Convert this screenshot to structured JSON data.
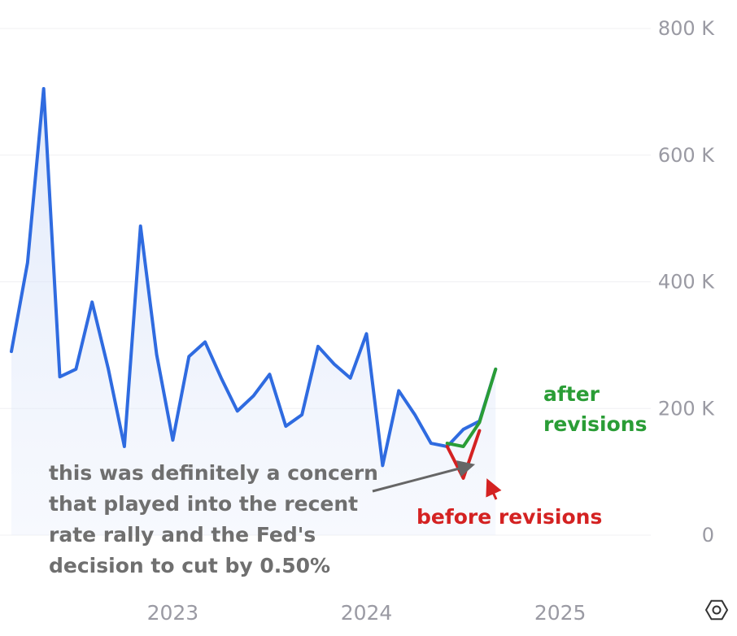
{
  "chart_data": {
    "type": "area",
    "title": "",
    "xlabel": "",
    "ylabel": "",
    "y_axis_position": "right",
    "ylim": [
      0,
      800000
    ],
    "y_ticks": [
      {
        "value": 0,
        "label": "0"
      },
      {
        "value": 200000,
        "label": "200 K"
      },
      {
        "value": 400000,
        "label": "400 K"
      },
      {
        "value": 600000,
        "label": "600 K"
      },
      {
        "value": 800000,
        "label": "800 K"
      }
    ],
    "x_ticks": [
      {
        "value": "2023-01",
        "label": "2023"
      },
      {
        "value": "2024-01",
        "label": "2024"
      },
      {
        "value": "2025-01",
        "label": "2025"
      }
    ],
    "xlim": [
      "2022-03",
      "2025-05"
    ],
    "grid": true,
    "series": [
      {
        "role": "main",
        "color": "#2f6be0",
        "x": [
          "2022-03",
          "2022-04",
          "2022-05",
          "2022-06",
          "2022-07",
          "2022-08",
          "2022-09",
          "2022-10",
          "2022-11",
          "2022-12",
          "2023-01",
          "2023-02",
          "2023-03",
          "2023-04",
          "2023-05",
          "2023-06",
          "2023-07",
          "2023-08",
          "2023-09",
          "2023-10",
          "2023-11",
          "2023-12",
          "2024-01",
          "2024-02",
          "2024-03",
          "2024-04",
          "2024-05",
          "2024-06",
          "2024-07",
          "2024-08",
          "2024-09"
        ],
        "values": [
          290000,
          430000,
          705000,
          250000,
          262000,
          368000,
          263000,
          140000,
          488000,
          285000,
          150000,
          282000,
          305000,
          248000,
          196000,
          220000,
          254000,
          172000,
          190000,
          298000,
          270000,
          248000,
          318000,
          110000,
          228000,
          190000,
          145000,
          140000,
          167000,
          180000,
          262000
        ]
      },
      {
        "role": "before-revisions",
        "color": "#d42222",
        "x": [
          "2024-06",
          "2024-07",
          "2024-08"
        ],
        "values": [
          140000,
          90000,
          165000
        ]
      },
      {
        "role": "after-revisions",
        "color": "#2a9d36",
        "x": [
          "2024-06",
          "2024-07",
          "2024-08",
          "2024-09"
        ],
        "values": [
          145000,
          140000,
          178000,
          262000
        ]
      }
    ],
    "annotations": {
      "concern": [
        "this was definitely a concern",
        "that played into the recent",
        "rate rally and the Fed's",
        "decision to cut by 0.50%"
      ],
      "after": [
        "after",
        "revisions"
      ],
      "before": "before revisions"
    }
  }
}
